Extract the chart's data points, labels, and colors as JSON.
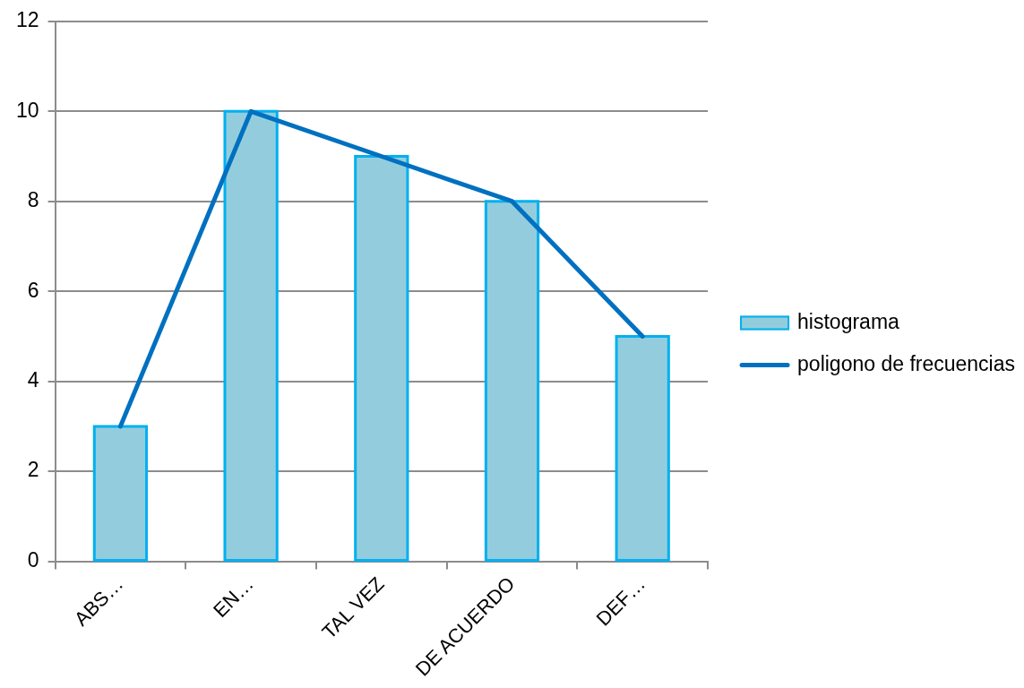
{
  "chart_data": {
    "type": "bar",
    "categories": [
      "ABS…",
      "EN…",
      "TAL VEZ",
      "DE ACUERDO",
      "DEF…"
    ],
    "series": [
      {
        "name": "histograma",
        "color": "#93cddd",
        "values": [
          3,
          10,
          9,
          8,
          5
        ]
      },
      {
        "name": "poligono de frecuencias",
        "type": "line",
        "color": "#0070c0",
        "values": [
          3,
          10,
          9,
          8,
          5
        ]
      }
    ],
    "ylim": [
      0,
      12
    ],
    "yticks": [
      0,
      2,
      4,
      6,
      8,
      10,
      12
    ],
    "grid": "y",
    "legend": "right",
    "marker": "none"
  }
}
